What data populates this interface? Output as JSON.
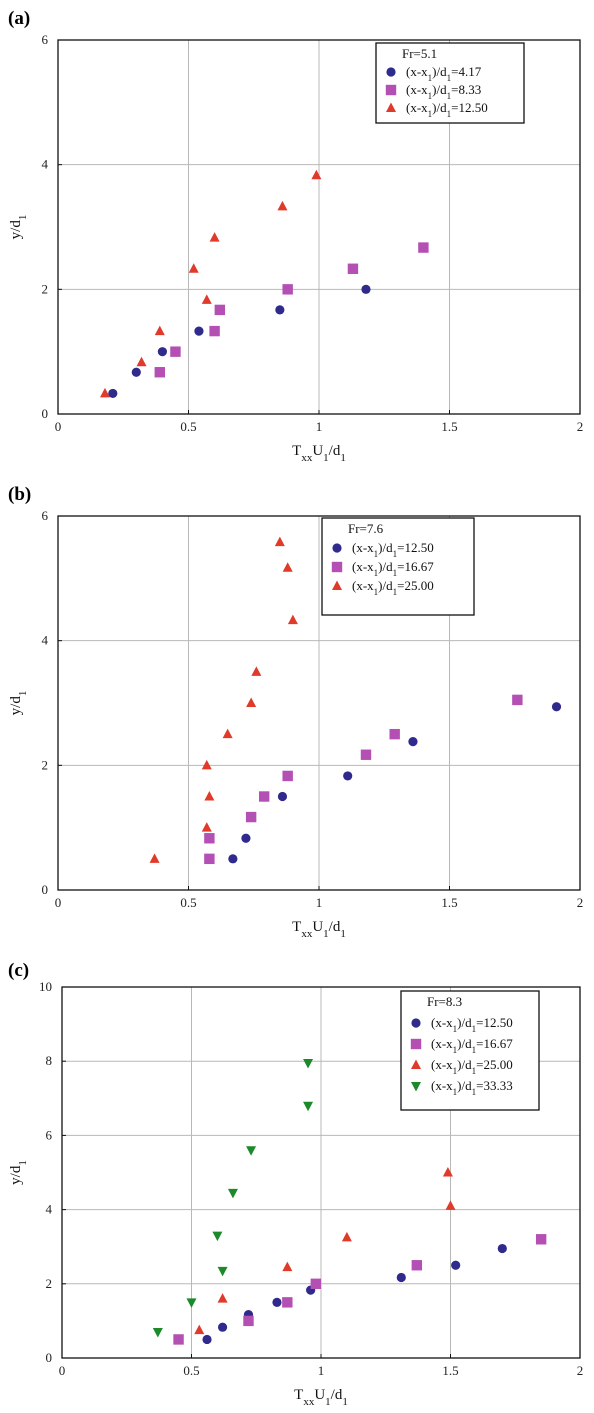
{
  "chart_data": [
    {
      "type": "scatter",
      "panel_label": "(a)",
      "xlim": [
        0,
        2
      ],
      "ylim": [
        0,
        6
      ],
      "xticks": [
        "0",
        "0.5",
        "1",
        "1.5",
        "2"
      ],
      "yticks": [
        "0",
        "2",
        "4",
        "6"
      ],
      "grid": true,
      "legend_position": "top-right",
      "legend_title": "Fr=5.1",
      "series": [
        {
          "name": "(x-x1)/d1=4.17",
          "marker": "circle",
          "color": "#2f2a8c",
          "points": [
            [
              0.21,
              0.33
            ],
            [
              0.3,
              0.67
            ],
            [
              0.4,
              1.0
            ],
            [
              0.54,
              1.33
            ],
            [
              0.85,
              1.67
            ],
            [
              1.18,
              2.0
            ]
          ]
        },
        {
          "name": "(x-x1)/d1=8.33",
          "marker": "square",
          "color": "#b44fb4",
          "points": [
            [
              0.39,
              0.67
            ],
            [
              0.45,
              1.0
            ],
            [
              0.6,
              1.33
            ],
            [
              0.62,
              1.67
            ],
            [
              0.88,
              2.0
            ],
            [
              1.13,
              2.33
            ],
            [
              1.4,
              2.67
            ]
          ]
        },
        {
          "name": "(x-x1)/d1=12.50",
          "marker": "triangle-up",
          "color": "#e03a2a",
          "points": [
            [
              0.18,
              0.33
            ],
            [
              0.32,
              0.83
            ],
            [
              0.39,
              1.33
            ],
            [
              0.57,
              1.83
            ],
            [
              0.52,
              2.33
            ],
            [
              0.6,
              2.83
            ],
            [
              0.86,
              3.33
            ],
            [
              0.99,
              3.83
            ]
          ]
        }
      ]
    },
    {
      "type": "scatter",
      "panel_label": "(b)",
      "xlim": [
        0,
        2
      ],
      "ylim": [
        0,
        6
      ],
      "xticks": [
        "0",
        "0.5",
        "1",
        "1.5",
        "2"
      ],
      "yticks": [
        "0",
        "2",
        "4",
        "6"
      ],
      "grid": true,
      "legend_position": "top-right",
      "legend_title": "Fr=7.6",
      "series": [
        {
          "name": "(x-x1)/d1=12.50",
          "marker": "circle",
          "color": "#2f2a8c",
          "points": [
            [
              0.67,
              0.5
            ],
            [
              0.72,
              0.83
            ],
            [
              0.86,
              1.5
            ],
            [
              1.11,
              1.83
            ],
            [
              1.36,
              2.38
            ],
            [
              1.91,
              2.94
            ]
          ]
        },
        {
          "name": "(x-x1)/d1=16.67",
          "marker": "square",
          "color": "#b44fb4",
          "points": [
            [
              0.58,
              0.5
            ],
            [
              0.58,
              0.83
            ],
            [
              0.74,
              1.17
            ],
            [
              0.79,
              1.5
            ],
            [
              0.88,
              1.83
            ],
            [
              1.18,
              2.17
            ],
            [
              1.29,
              2.5
            ],
            [
              1.76,
              3.05
            ]
          ]
        },
        {
          "name": "(x-x1)/d1=25.00",
          "marker": "triangle-up",
          "color": "#e03a2a",
          "points": [
            [
              0.37,
              0.5
            ],
            [
              0.57,
              1.0
            ],
            [
              0.58,
              1.5
            ],
            [
              0.57,
              2.0
            ],
            [
              0.65,
              2.5
            ],
            [
              0.74,
              3.0
            ],
            [
              0.76,
              3.5
            ],
            [
              0.9,
              4.33
            ],
            [
              0.88,
              5.17
            ],
            [
              0.85,
              5.58
            ]
          ]
        }
      ]
    },
    {
      "type": "scatter",
      "panel_label": "(c)",
      "xlim": [
        0,
        2
      ],
      "ylim": [
        0,
        10
      ],
      "xticks": [
        "0",
        "0.5",
        "1",
        "1.5",
        "2"
      ],
      "yticks": [
        "0",
        "2",
        "4",
        "6",
        "8",
        "10"
      ],
      "grid": true,
      "legend_position": "top-right",
      "legend_title": "Fr=8.3",
      "series": [
        {
          "name": "(x-x1)/d1=12.50",
          "marker": "circle",
          "color": "#2f2a8c",
          "points": [
            [
              0.56,
              0.5
            ],
            [
              0.62,
              0.83
            ],
            [
              0.72,
              1.17
            ],
            [
              0.83,
              1.5
            ],
            [
              0.96,
              1.83
            ],
            [
              1.31,
              2.17
            ],
            [
              1.52,
              2.5
            ],
            [
              1.7,
              2.95
            ]
          ]
        },
        {
          "name": "(x-x1)/d1=16.67",
          "marker": "square",
          "color": "#b44fb4",
          "points": [
            [
              0.45,
              0.5
            ],
            [
              0.72,
              1.0
            ],
            [
              0.87,
              1.5
            ],
            [
              0.98,
              2.0
            ],
            [
              1.37,
              2.5
            ],
            [
              1.85,
              3.2
            ]
          ]
        },
        {
          "name": "(x-x1)/d1=25.00",
          "marker": "triangle-up",
          "color": "#e03a2a",
          "points": [
            [
              0.53,
              0.75
            ],
            [
              0.62,
              1.6
            ],
            [
              0.87,
              2.45
            ],
            [
              1.1,
              3.25
            ],
            [
              1.49,
              5.0
            ],
            [
              1.5,
              4.1
            ]
          ]
        },
        {
          "name": "(x-x1)/d1=33.33",
          "marker": "triangle-down",
          "color": "#1c8a2a",
          "points": [
            [
              0.37,
              0.7
            ],
            [
              0.5,
              1.5
            ],
            [
              0.62,
              2.35
            ],
            [
              0.6,
              3.3
            ],
            [
              0.66,
              4.45
            ],
            [
              0.73,
              5.6
            ],
            [
              0.95,
              6.8
            ],
            [
              0.95,
              7.95
            ]
          ]
        }
      ]
    }
  ]
}
